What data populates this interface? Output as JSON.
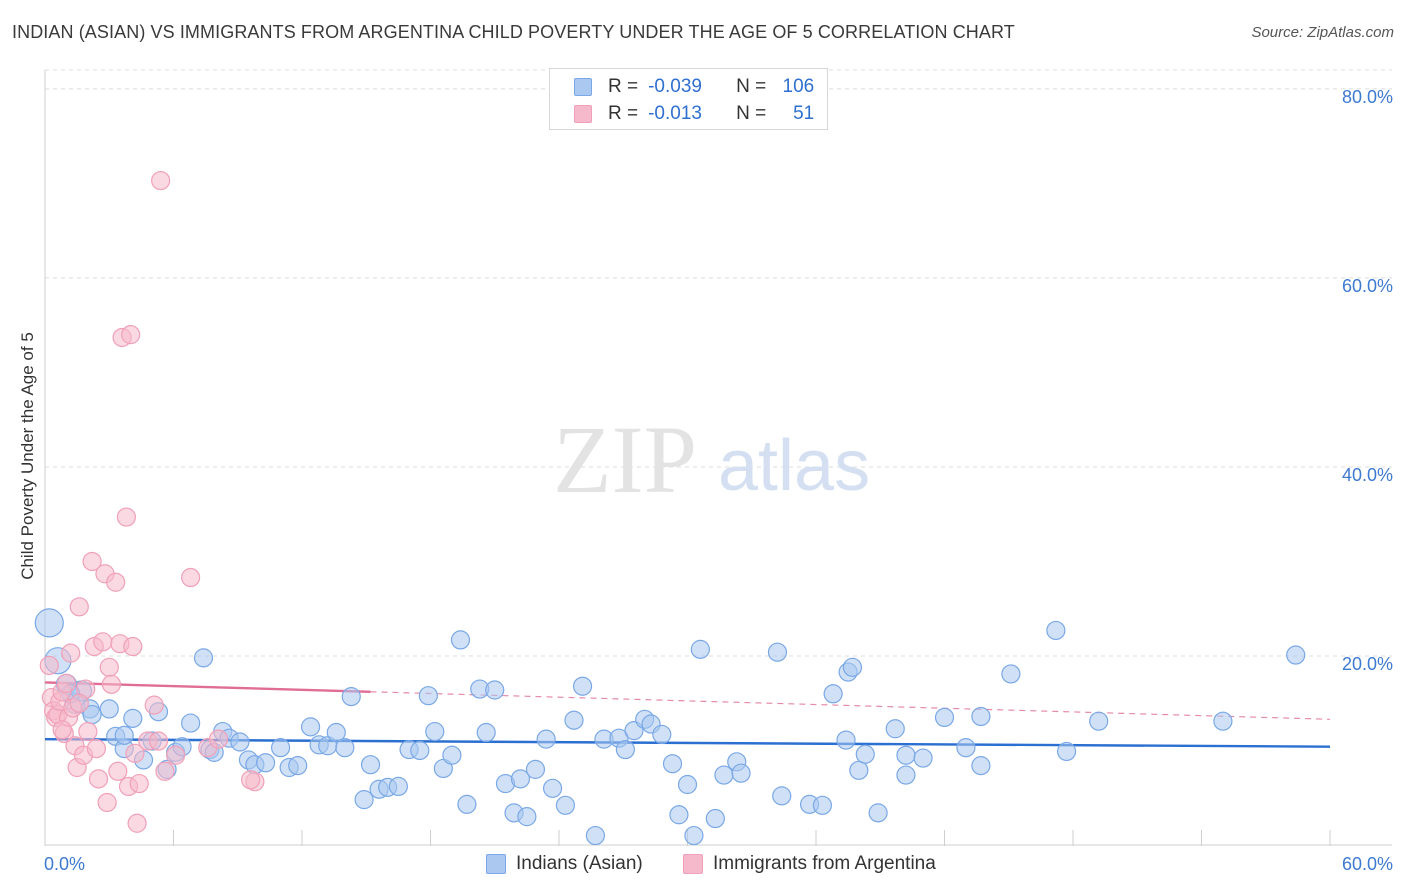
{
  "title": "INDIAN (ASIAN) VS IMMIGRANTS FROM ARGENTINA CHILD POVERTY UNDER THE AGE OF 5 CORRELATION CHART",
  "source": "Source: ZipAtlas.com",
  "watermark": {
    "part1": "ZIP",
    "part2": "atlas"
  },
  "legend": {
    "rows": [
      {
        "r_label": "R =",
        "r_value": "-0.039",
        "n_label": "N =",
        "n_value": "106",
        "color": "#aac8f0"
      },
      {
        "r_label": "R =",
        "r_value": "-0.013",
        "n_label": "N =",
        "n_value": "51",
        "color": "#f6b9cb"
      }
    ]
  },
  "bottom_legend": [
    {
      "label": "Indians (Asian)",
      "color": "#aac8f0"
    },
    {
      "label": "Immigrants from Argentina",
      "color": "#f6b9cb"
    }
  ],
  "chart_data": {
    "type": "scatter",
    "title": "INDIAN (ASIAN) VS IMMIGRANTS FROM ARGENTINA CHILD POVERTY UNDER THE AGE OF 5 CORRELATION CHART",
    "xlabel": "",
    "ylabel": "Child Poverty Under the Age of 5",
    "xlim": [
      0,
      60
    ],
    "ylim": [
      0,
      82
    ],
    "x_tick_labels": [
      "0.0%",
      "60.0%"
    ],
    "y_ticks": [
      20,
      40,
      60,
      80
    ],
    "y_tick_labels": [
      "20.0%",
      "40.0%",
      "60.0%",
      "80.0%"
    ],
    "grid": true,
    "series": [
      {
        "name": "Indians (Asian)",
        "color": "#7aa8e6",
        "fill": "#aac8f0",
        "line_color": "#2b6fd0",
        "trend": {
          "x": [
            0,
            60
          ],
          "y": [
            11.2,
            10.4
          ],
          "dashed_from": null
        },
        "points": [
          [
            0.2,
            23.5,
            14
          ],
          [
            0.6,
            19.5,
            13
          ],
          [
            1.0,
            17.0,
            10
          ],
          [
            1.4,
            15.0,
            10
          ],
          [
            1.7,
            16.3,
            10
          ],
          [
            2.1,
            14.4,
            9
          ],
          [
            2.2,
            13.8,
            9
          ],
          [
            3.0,
            14.4,
            9
          ],
          [
            3.3,
            11.5,
            9
          ],
          [
            3.7,
            10.2,
            9
          ],
          [
            4.1,
            13.4,
            9
          ],
          [
            4.6,
            9.0,
            9
          ],
          [
            5.0,
            11.0,
            9
          ],
          [
            5.3,
            14.1,
            9
          ],
          [
            5.7,
            8.0,
            9
          ],
          [
            6.1,
            9.8,
            9
          ],
          [
            6.4,
            10.4,
            9
          ],
          [
            6.8,
            12.9,
            9
          ],
          [
            7.4,
            19.8,
            9
          ],
          [
            7.7,
            10.1,
            9
          ],
          [
            7.9,
            9.8,
            9
          ],
          [
            8.3,
            12.0,
            9
          ],
          [
            8.6,
            11.3,
            9
          ],
          [
            9.1,
            10.9,
            9
          ],
          [
            9.5,
            9.0,
            9
          ],
          [
            9.8,
            8.5,
            9
          ],
          [
            10.3,
            8.7,
            9
          ],
          [
            11.0,
            10.3,
            9
          ],
          [
            11.4,
            8.2,
            9
          ],
          [
            11.8,
            8.4,
            9
          ],
          [
            12.4,
            12.5,
            9
          ],
          [
            12.8,
            10.6,
            9
          ],
          [
            13.2,
            10.5,
            9
          ],
          [
            13.6,
            11.9,
            9
          ],
          [
            14.0,
            10.3,
            9
          ],
          [
            14.3,
            15.7,
            9
          ],
          [
            14.9,
            4.8,
            9
          ],
          [
            15.2,
            8.5,
            9
          ],
          [
            15.6,
            5.9,
            9
          ],
          [
            16.0,
            6.1,
            9
          ],
          [
            16.5,
            6.2,
            9
          ],
          [
            17.0,
            10.1,
            9
          ],
          [
            17.5,
            10.0,
            9
          ],
          [
            17.9,
            15.8,
            9
          ],
          [
            18.2,
            12.0,
            9
          ],
          [
            18.6,
            8.1,
            9
          ],
          [
            19.0,
            9.5,
            9
          ],
          [
            19.4,
            21.7,
            9
          ],
          [
            19.7,
            4.3,
            9
          ],
          [
            20.3,
            16.5,
            9
          ],
          [
            20.6,
            11.9,
            9
          ],
          [
            21.0,
            16.4,
            9
          ],
          [
            21.5,
            6.5,
            9
          ],
          [
            21.9,
            3.4,
            9
          ],
          [
            22.2,
            7.0,
            9
          ],
          [
            22.5,
            3.0,
            9
          ],
          [
            22.9,
            8.0,
            9
          ],
          [
            23.4,
            11.2,
            9
          ],
          [
            23.7,
            6.0,
            9
          ],
          [
            24.3,
            4.2,
            9
          ],
          [
            24.7,
            13.2,
            9
          ],
          [
            25.1,
            16.8,
            9
          ],
          [
            25.7,
            1.0,
            9
          ],
          [
            26.1,
            11.2,
            9
          ],
          [
            26.8,
            11.3,
            9
          ],
          [
            27.1,
            10.1,
            9
          ],
          [
            27.5,
            12.1,
            9
          ],
          [
            28.0,
            13.3,
            9
          ],
          [
            28.3,
            12.8,
            9
          ],
          [
            28.8,
            11.7,
            9
          ],
          [
            29.3,
            8.6,
            9
          ],
          [
            29.6,
            3.2,
            9
          ],
          [
            30.0,
            6.4,
            9
          ],
          [
            30.3,
            1.0,
            9
          ],
          [
            30.6,
            20.7,
            9
          ],
          [
            31.3,
            2.8,
            9
          ],
          [
            31.7,
            7.4,
            9
          ],
          [
            32.3,
            8.8,
            9
          ],
          [
            32.5,
            7.6,
            9
          ],
          [
            34.2,
            20.4,
            9
          ],
          [
            34.4,
            5.2,
            9
          ],
          [
            35.7,
            4.3,
            9
          ],
          [
            36.3,
            4.2,
            9
          ],
          [
            36.8,
            16.0,
            9
          ],
          [
            37.4,
            11.1,
            9
          ],
          [
            37.5,
            18.3,
            9
          ],
          [
            37.7,
            18.8,
            9
          ],
          [
            38.0,
            7.9,
            9
          ],
          [
            38.3,
            9.6,
            9
          ],
          [
            38.9,
            3.4,
            9
          ],
          [
            39.7,
            12.3,
            9
          ],
          [
            40.2,
            9.5,
            9
          ],
          [
            40.2,
            7.4,
            9
          ],
          [
            41.0,
            9.2,
            9
          ],
          [
            42.0,
            13.5,
            9
          ],
          [
            43.0,
            10.3,
            9
          ],
          [
            43.7,
            13.6,
            9
          ],
          [
            43.7,
            8.4,
            9
          ],
          [
            45.1,
            18.1,
            9
          ],
          [
            47.2,
            22.7,
            9
          ],
          [
            47.7,
            9.9,
            9
          ],
          [
            49.2,
            13.1,
            9
          ],
          [
            55.0,
            13.1,
            9
          ],
          [
            58.4,
            20.1,
            9
          ],
          [
            1.2,
            16.0,
            9
          ],
          [
            3.7,
            11.6,
            9
          ]
        ]
      },
      {
        "name": "Immigrants from Argentina",
        "color": "#f0a0b8",
        "fill": "#f6b9cb",
        "line_color": "#e06d95",
        "trend": {
          "x": [
            0,
            60
          ],
          "y": [
            17.2,
            13.3
          ],
          "solid_to_x": 15.2
        },
        "points": [
          [
            0.2,
            19.0,
            9
          ],
          [
            0.3,
            15.6,
            9
          ],
          [
            0.4,
            14.2,
            9
          ],
          [
            0.5,
            13.5,
            9
          ],
          [
            0.6,
            13.8,
            9
          ],
          [
            0.7,
            15.2,
            9
          ],
          [
            0.8,
            16.2,
            9
          ],
          [
            0.9,
            11.8,
            9
          ],
          [
            1.1,
            13.5,
            9
          ],
          [
            1.2,
            20.3,
            9
          ],
          [
            1.3,
            14.5,
            9
          ],
          [
            1.4,
            10.5,
            9
          ],
          [
            1.5,
            8.2,
            9
          ],
          [
            1.6,
            25.2,
            9
          ],
          [
            1.8,
            9.5,
            9
          ],
          [
            1.9,
            16.5,
            9
          ],
          [
            2.0,
            12.0,
            9
          ],
          [
            2.2,
            30.0,
            9
          ],
          [
            2.3,
            21.0,
            9
          ],
          [
            2.4,
            10.2,
            9
          ],
          [
            2.5,
            7.0,
            9
          ],
          [
            2.7,
            21.5,
            9
          ],
          [
            2.8,
            28.7,
            9
          ],
          [
            2.9,
            4.5,
            9
          ],
          [
            3.0,
            18.8,
            9
          ],
          [
            3.3,
            27.8,
            9
          ],
          [
            3.4,
            7.8,
            9
          ],
          [
            3.5,
            21.3,
            9
          ],
          [
            3.6,
            53.7,
            9
          ],
          [
            3.8,
            34.7,
            9
          ],
          [
            3.9,
            6.2,
            9
          ],
          [
            4.0,
            54.0,
            9
          ],
          [
            4.1,
            21.0,
            9
          ],
          [
            4.2,
            9.7,
            9
          ],
          [
            4.3,
            2.3,
            9
          ],
          [
            4.4,
            6.5,
            9
          ],
          [
            4.8,
            11.0,
            9
          ],
          [
            5.1,
            14.8,
            9
          ],
          [
            5.3,
            11.0,
            9
          ],
          [
            5.4,
            70.3,
            9
          ],
          [
            5.6,
            7.8,
            9
          ],
          [
            6.1,
            9.5,
            9
          ],
          [
            6.8,
            28.3,
            9
          ],
          [
            7.6,
            10.3,
            9
          ],
          [
            8.1,
            11.2,
            9
          ],
          [
            9.8,
            6.7,
            9
          ],
          [
            1.0,
            17.1,
            9
          ],
          [
            1.6,
            15.0,
            9
          ],
          [
            0.8,
            12.2,
            9
          ],
          [
            3.1,
            17.0,
            9
          ],
          [
            9.6,
            6.9,
            9
          ]
        ]
      }
    ]
  }
}
